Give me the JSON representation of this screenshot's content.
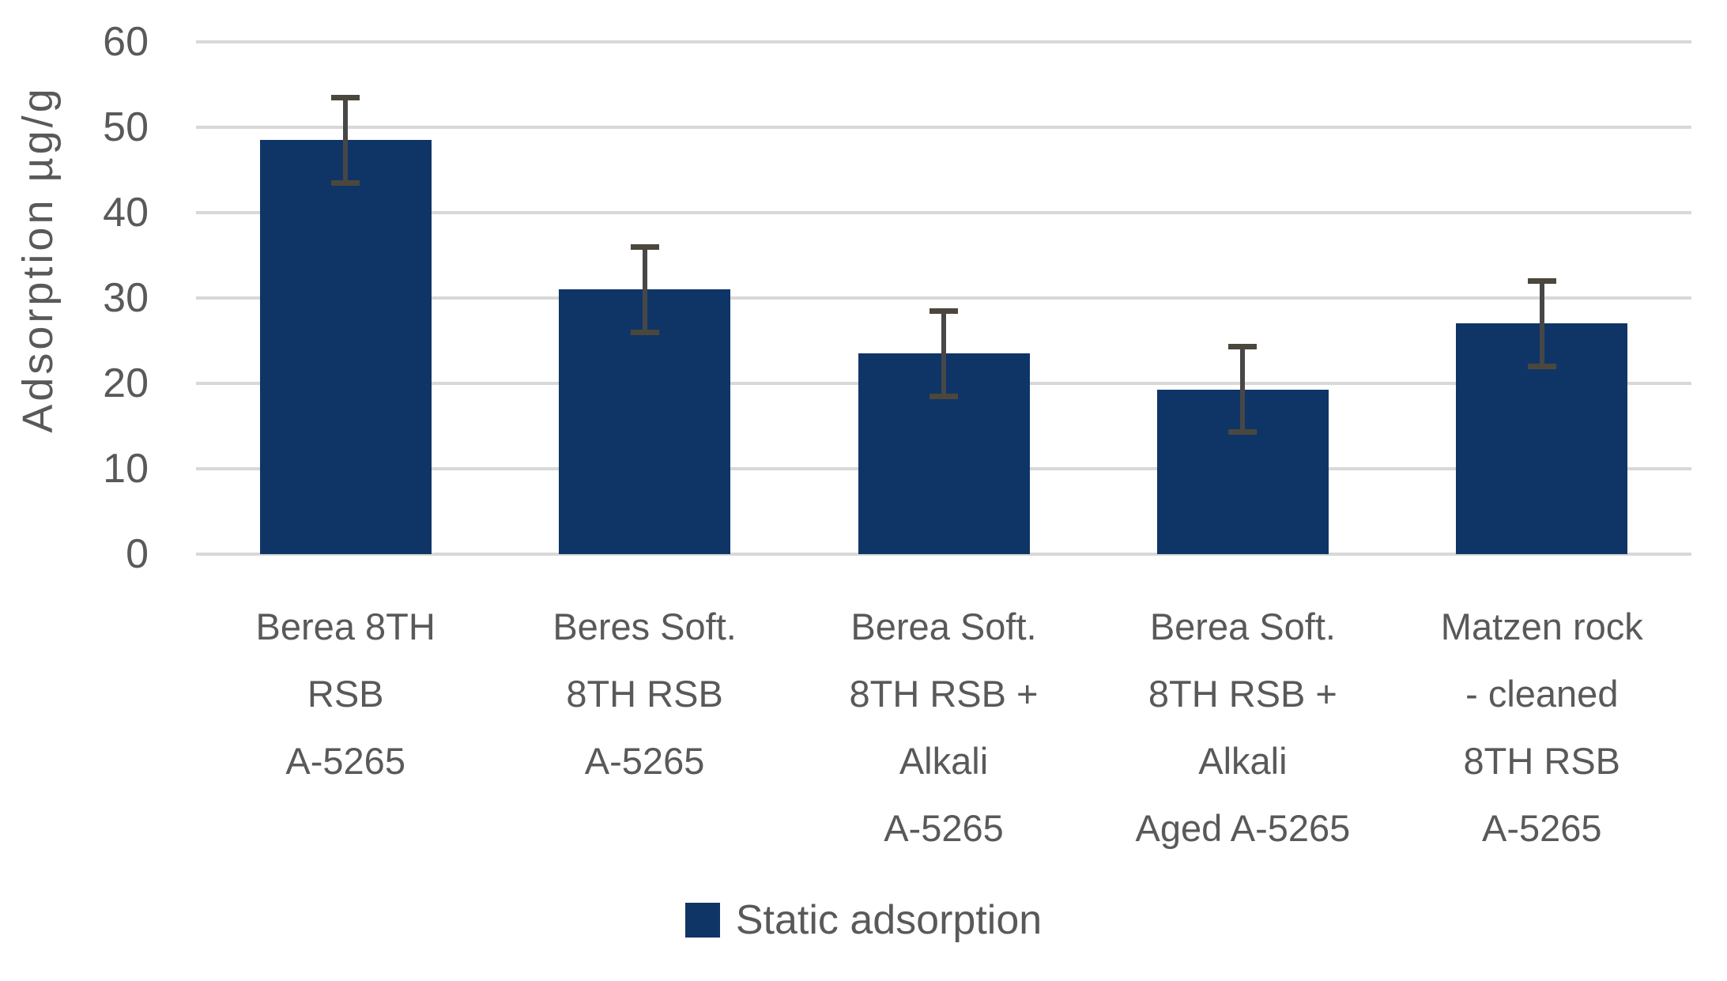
{
  "chart_data": {
    "type": "bar",
    "title": "",
    "xlabel": "",
    "ylabel": "Adsorption µg/g",
    "ylim": [
      0,
      60
    ],
    "yticks": [
      0,
      10,
      20,
      30,
      40,
      50,
      60
    ],
    "grid": "horizontal",
    "categories": [
      {
        "label": "Berea 8TH RSB A-5265",
        "lines": [
          "Berea 8TH",
          "RSB",
          "A-5265"
        ]
      },
      {
        "label": "Beres Soft. 8TH RSB A-5265",
        "lines": [
          "Beres Soft.",
          "8TH RSB",
          "A-5265"
        ]
      },
      {
        "label": "Berea Soft. 8TH RSB + Alkali A-5265",
        "lines": [
          "Berea Soft.",
          "8TH RSB +",
          "Alkali",
          "A-5265"
        ]
      },
      {
        "label": "Berea Soft. 8TH RSB + Alkali Aged A-5265",
        "lines": [
          "Berea Soft.",
          "8TH RSB +",
          "Alkali",
          "Aged A-5265"
        ]
      },
      {
        "label": "Matzen rock - cleaned 8TH RSB A-5265",
        "lines": [
          "Matzen rock",
          "- cleaned",
          "8TH RSB",
          "A-5265"
        ]
      }
    ],
    "series": [
      {
        "name": "Static adsorption",
        "values": [
          48.5,
          31,
          23.5,
          19.3,
          27
        ],
        "error_plus": [
          5,
          5,
          5,
          5,
          5
        ],
        "error_minus": [
          5,
          5,
          5,
          5,
          5
        ]
      }
    ],
    "legend": {
      "label": "Static adsorption",
      "position": "bottom"
    },
    "colors": {
      "bar": "#0F3567",
      "error_bar": "#474747",
      "error_cap": "#4B473D",
      "grid_line": "#D8D8D8",
      "axis_text": "#595959",
      "background": "#FFFFFF"
    }
  }
}
